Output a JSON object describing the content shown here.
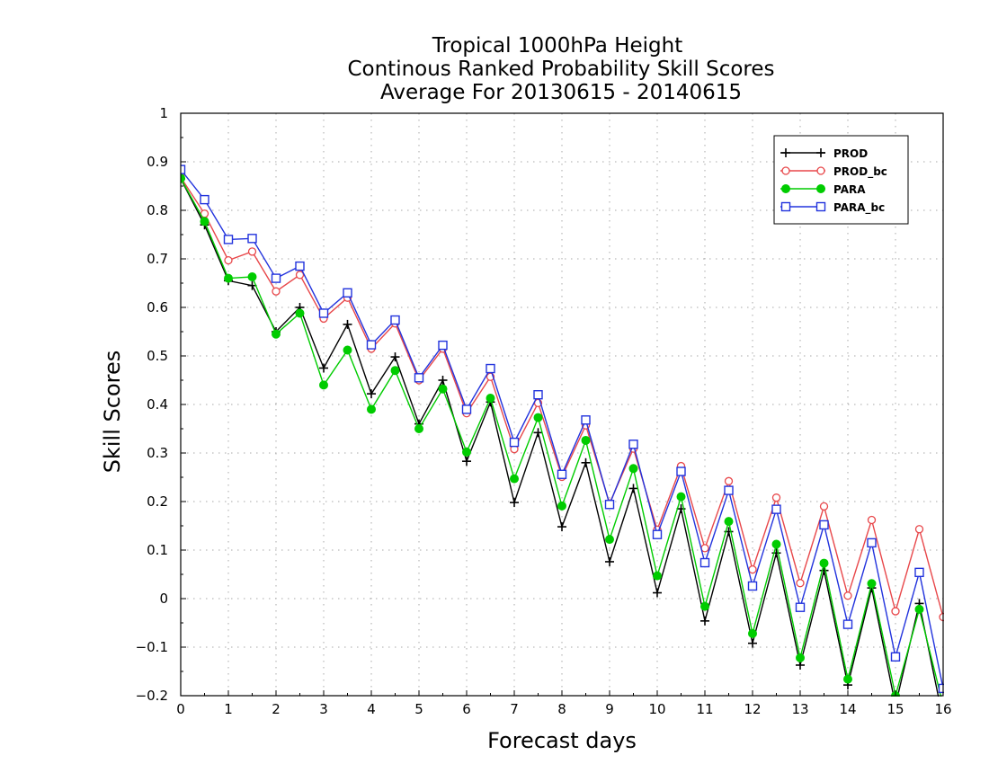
{
  "chart_data": {
    "type": "line",
    "title_lines": [
      "Tropical 1000hPa Height",
      "Continous Ranked Probability Skill Scores",
      "Average For 20130615 - 20140615"
    ],
    "xlabel": "Forecast days",
    "ylabel": "Skill Scores",
    "xlim": [
      0,
      16
    ],
    "ylim": [
      -0.2,
      1
    ],
    "x_ticks": [
      0,
      1,
      2,
      3,
      4,
      5,
      6,
      7,
      8,
      9,
      10,
      11,
      12,
      13,
      14,
      15,
      16
    ],
    "x_tick_labels": [
      "0",
      "1",
      "2",
      "3",
      "4",
      "5",
      "6",
      "7",
      "8",
      "9",
      "10",
      "11",
      "12",
      "13",
      "14",
      "15",
      "16"
    ],
    "y_ticks": [
      -0.2,
      -0.1,
      0,
      0.1,
      0.2,
      0.3,
      0.4,
      0.5,
      0.6,
      0.7,
      0.8,
      0.9,
      1
    ],
    "y_tick_labels": [
      "−0.2",
      "−0.1",
      "0",
      "0.1",
      "0.2",
      "0.3",
      "0.4",
      "0.5",
      "0.6",
      "0.7",
      "0.8",
      "0.9",
      "1"
    ],
    "grid": true,
    "legend_position": "top-right",
    "x": [
      0,
      0.5,
      1,
      1.5,
      2,
      2.5,
      3,
      3.5,
      4,
      4.5,
      5,
      5.5,
      6,
      6.5,
      7,
      7.5,
      8,
      8.5,
      9,
      9.5,
      10,
      10.5,
      11,
      11.5,
      12,
      12.5,
      13,
      13.5,
      14,
      14.5,
      15,
      15.5,
      16
    ],
    "series": [
      {
        "name": "PROD",
        "color": "#000000",
        "marker": "plus",
        "values": [
          0.865,
          0.77,
          0.655,
          0.645,
          0.55,
          0.6,
          0.475,
          0.565,
          0.422,
          0.498,
          0.36,
          0.45,
          0.283,
          0.405,
          0.198,
          0.342,
          0.148,
          0.28,
          0.076,
          0.227,
          0.012,
          0.185,
          -0.046,
          0.138,
          -0.092,
          0.094,
          -0.137,
          0.058,
          -0.178,
          0.022,
          -0.22,
          -0.01,
          -0.25
        ]
      },
      {
        "name": "PROD_bc",
        "color": "#e8474a",
        "marker": "open-circle",
        "values": [
          0.868,
          0.793,
          0.697,
          0.715,
          0.633,
          0.667,
          0.577,
          0.62,
          0.515,
          0.567,
          0.45,
          0.515,
          0.382,
          0.457,
          0.308,
          0.403,
          0.251,
          0.357,
          0.196,
          0.309,
          0.142,
          0.273,
          0.104,
          0.242,
          0.06,
          0.208,
          0.032,
          0.19,
          0.006,
          0.162,
          -0.026,
          0.143,
          -0.038
        ]
      },
      {
        "name": "PARA",
        "color": "#00cc00",
        "marker": "filled-circle",
        "values": [
          0.866,
          0.777,
          0.66,
          0.663,
          0.545,
          0.588,
          0.44,
          0.512,
          0.39,
          0.47,
          0.35,
          0.432,
          0.302,
          0.413,
          0.247,
          0.373,
          0.191,
          0.326,
          0.122,
          0.268,
          0.047,
          0.21,
          -0.016,
          0.159,
          -0.072,
          0.112,
          -0.122,
          0.073,
          -0.166,
          0.031,
          -0.2,
          -0.022,
          -0.22
        ]
      },
      {
        "name": "PARA_bc",
        "color": "#2233dd",
        "marker": "open-square",
        "values": [
          0.884,
          0.822,
          0.74,
          0.742,
          0.66,
          0.685,
          0.588,
          0.63,
          0.523,
          0.574,
          0.455,
          0.522,
          0.39,
          0.474,
          0.322,
          0.42,
          0.256,
          0.368,
          0.194,
          0.318,
          0.132,
          0.262,
          0.074,
          0.223,
          0.026,
          0.184,
          -0.018,
          0.152,
          -0.053,
          0.115,
          -0.12,
          0.054,
          -0.185
        ]
      }
    ]
  }
}
